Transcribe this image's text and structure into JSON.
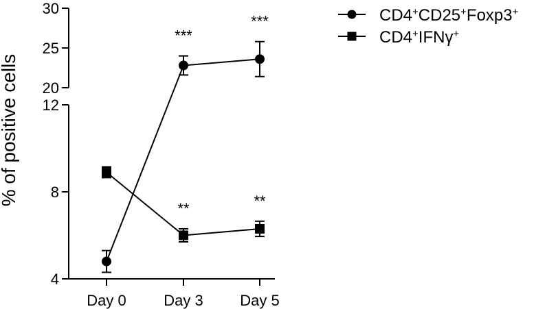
{
  "chart_data": {
    "type": "line",
    "categories": [
      "Day 0",
      "Day 3",
      "Day 5"
    ],
    "ylabel": "% of positive cells",
    "xlabel": "",
    "y_axis_broken": true,
    "y_segments": [
      {
        "range": [
          4,
          12
        ],
        "ticks": [
          "4",
          "8",
          "12"
        ]
      },
      {
        "range": [
          20,
          30
        ],
        "ticks": [
          "20",
          "25",
          "30"
        ]
      }
    ],
    "series": [
      {
        "name_base": "CD4",
        "name_sup1": "+",
        "name_mid": "CD25",
        "name_sup2": "+",
        "name_tail": "Foxp3",
        "name_sup3": "+",
        "marker": "circle",
        "values": [
          4.8,
          22.8,
          23.6
        ],
        "errors": [
          0.5,
          1.2,
          2.2
        ],
        "significance": [
          "",
          "***",
          "***"
        ]
      },
      {
        "name_base": "CD4",
        "name_sup1": "+",
        "name_mid": "IFNγ",
        "name_sup2": "+",
        "marker": "square",
        "values": [
          8.9,
          6.0,
          6.3
        ],
        "errors": [
          0.25,
          0.3,
          0.35
        ],
        "significance": [
          "",
          "**",
          "**"
        ]
      }
    ],
    "legend_position": "top-right",
    "grid": false
  }
}
